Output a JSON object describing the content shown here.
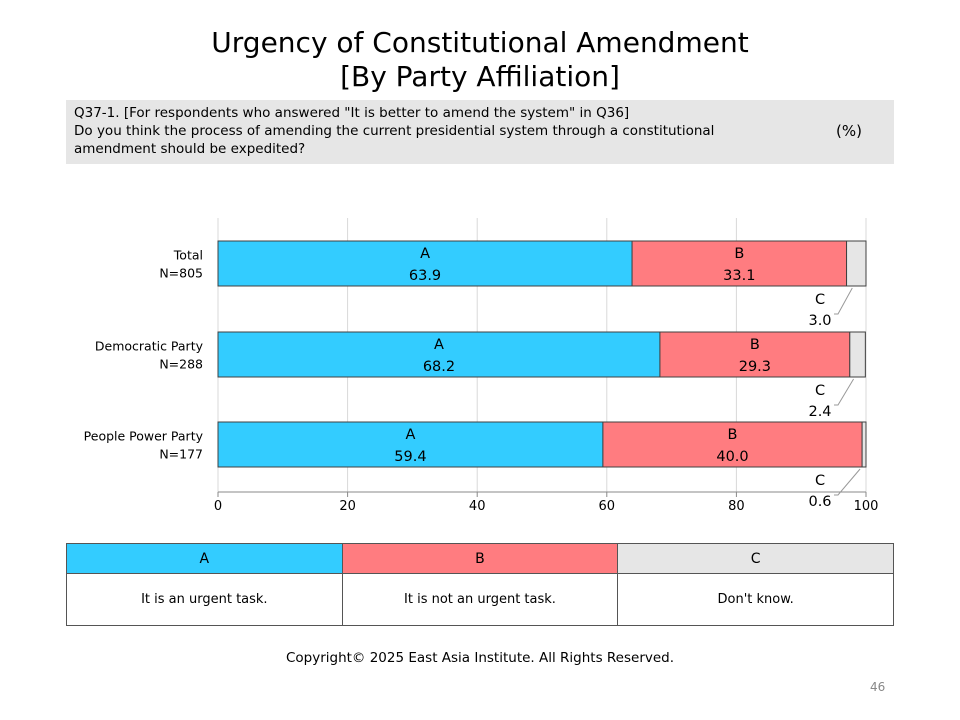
{
  "title": {
    "line1": "Urgency of Constitutional Amendment",
    "line2": "[By Party Affiliation]"
  },
  "question": {
    "line1": "Q37-1. [For respondents who answered \"It is better to amend the system\" in Q36]",
    "line2": "Do you think the process of amending the current presidential system through a constitutional",
    "line3": "amendment should be expedited?",
    "unit": "(%)"
  },
  "colors": {
    "A": "#33ccff",
    "B": "#ff7c80",
    "C": "#e6e6e6"
  },
  "chart_data": {
    "type": "bar",
    "orientation": "horizontal",
    "stacked": true,
    "categories": [
      {
        "name": "Total",
        "n": "N=805"
      },
      {
        "name": "Democratic Party",
        "n": "N=288"
      },
      {
        "name": "People Power Party",
        "n": "N=177"
      }
    ],
    "series": [
      {
        "name": "A",
        "values": [
          63.9,
          68.2,
          59.4
        ]
      },
      {
        "name": "B",
        "values": [
          33.1,
          29.3,
          40.0
        ]
      },
      {
        "name": "C",
        "values": [
          3.0,
          2.4,
          0.6
        ]
      }
    ],
    "xlim": [
      0,
      100
    ],
    "xticks": [
      "0",
      "20",
      "40",
      "60",
      "80",
      "100"
    ],
    "grid": true
  },
  "legend": {
    "A": {
      "key": "A",
      "label": "It is an urgent task."
    },
    "B": {
      "key": "B",
      "label": "It is not an urgent task."
    },
    "C": {
      "key": "C",
      "label": "Don't know."
    }
  },
  "copyright": "Copyright© 2025 East Asia Institute. All Rights Reserved.",
  "page_number": "46"
}
